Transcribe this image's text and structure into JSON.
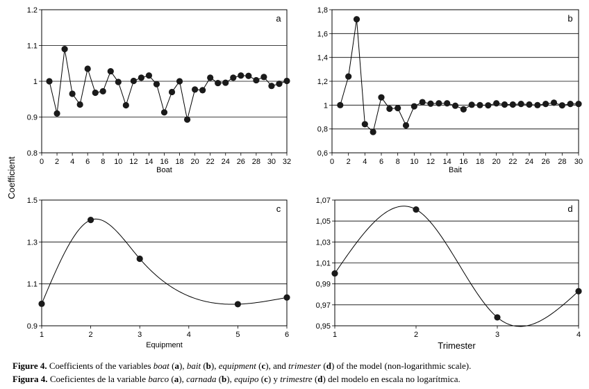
{
  "figure": {
    "shared_ylabel": "Coefficient",
    "colors": {
      "line": "#000000",
      "marker": "#1a1a1a",
      "grid": "#000000"
    }
  },
  "chart_data": [
    {
      "id": "a",
      "type": "line",
      "panel_letter": "a",
      "xlabel": "Boat",
      "ylabel": "",
      "xlim": [
        0,
        32
      ],
      "ylim": [
        0.8,
        1.2
      ],
      "xticks": [
        0,
        2,
        4,
        6,
        8,
        10,
        12,
        14,
        16,
        18,
        20,
        22,
        24,
        26,
        28,
        30,
        32
      ],
      "xtick_labels": [
        "0",
        "2",
        "4",
        "6",
        "8",
        "10",
        "12",
        "14",
        "16",
        "18",
        "20",
        "22",
        "24",
        "26",
        "28",
        "30",
        "32"
      ],
      "yticks": [
        0.8,
        0.9,
        1,
        1.1,
        1.2
      ],
      "ytick_labels": [
        "0.8",
        "0.9",
        "1",
        "1.1",
        "1.2"
      ],
      "grid": "horizontal",
      "smooth": false,
      "x": [
        1,
        2,
        3,
        4,
        5,
        6,
        7,
        8,
        9,
        10,
        11,
        12,
        13,
        14,
        15,
        16,
        17,
        18,
        19,
        20,
        21,
        22,
        23,
        24,
        25,
        26,
        27,
        28,
        29,
        30,
        31,
        32
      ],
      "y": [
        1.0,
        0.91,
        1.09,
        0.965,
        0.935,
        1.035,
        0.968,
        0.972,
        1.028,
        0.998,
        0.933,
        1.001,
        1.01,
        1.016,
        0.992,
        0.913,
        0.97,
        1.0,
        0.893,
        0.977,
        0.975,
        1.01,
        0.995,
        0.996,
        1.01,
        1.016,
        1.015,
        1.003,
        1.012,
        0.987,
        0.993,
        1.001
      ]
    },
    {
      "id": "b",
      "type": "line",
      "panel_letter": "b",
      "xlabel": "Bait",
      "ylabel": "",
      "xlim": [
        0,
        30
      ],
      "ylim": [
        0.6,
        1.8
      ],
      "xticks": [
        0,
        2,
        4,
        6,
        8,
        10,
        12,
        14,
        16,
        18,
        20,
        22,
        24,
        26,
        28,
        30
      ],
      "xtick_labels": [
        "0",
        "2",
        "4",
        "6",
        "8",
        "10",
        "12",
        "14",
        "16",
        "18",
        "20",
        "22",
        "24",
        "26",
        "28",
        "30"
      ],
      "yticks": [
        0.6,
        0.8,
        1.0,
        1.2,
        1.4,
        1.6,
        1.8
      ],
      "ytick_labels": [
        "0,6",
        "0,8",
        "1",
        "1,2",
        "1,4",
        "1,6",
        "1,8"
      ],
      "grid": "horizontal",
      "smooth": false,
      "x": [
        1,
        2,
        3,
        4,
        5,
        6,
        7,
        8,
        9,
        10,
        11,
        12,
        13,
        14,
        15,
        16,
        17,
        18,
        19,
        20,
        21,
        22,
        23,
        24,
        25,
        26,
        27,
        28,
        29,
        30
      ],
      "y": [
        1.0,
        1.24,
        1.72,
        0.84,
        0.775,
        1.065,
        0.97,
        0.975,
        0.83,
        0.99,
        1.025,
        1.012,
        1.015,
        1.015,
        0.995,
        0.965,
        1.003,
        1.0,
        0.998,
        1.015,
        1.005,
        1.005,
        1.01,
        1.005,
        1.0,
        1.01,
        1.02,
        0.998,
        1.01,
        1.01
      ]
    },
    {
      "id": "c",
      "type": "line",
      "panel_letter": "c",
      "xlabel": "Equipment",
      "ylabel": "",
      "xlim": [
        1,
        6
      ],
      "ylim": [
        0.9,
        1.5
      ],
      "xticks": [
        1,
        2,
        3,
        4,
        5,
        6
      ],
      "xtick_labels": [
        "1",
        "2",
        "3",
        "4",
        "5",
        "6"
      ],
      "yticks": [
        0.9,
        1.1,
        1.3,
        1.5
      ],
      "ytick_labels": [
        "0.9",
        "1.1",
        "1.3",
        "1.5"
      ],
      "grid": "horizontal",
      "smooth": true,
      "x": [
        1,
        2,
        3,
        5,
        6
      ],
      "y": [
        1.005,
        1.405,
        1.22,
        1.003,
        1.035
      ]
    },
    {
      "id": "d",
      "type": "line",
      "panel_letter": "d",
      "xlabel": "Trimester",
      "ylabel": "",
      "xlim": [
        1,
        4
      ],
      "ylim": [
        0.95,
        1.07
      ],
      "xticks": [
        1,
        2,
        3,
        4
      ],
      "xtick_labels": [
        "1",
        "2",
        "3",
        "4"
      ],
      "yticks": [
        0.95,
        0.97,
        0.99,
        1.01,
        1.03,
        1.05,
        1.07
      ],
      "ytick_labels": [
        "0,95",
        "0,97",
        "0,99",
        "1,01",
        "1,03",
        "1,05",
        "1,07"
      ],
      "grid": "horizontal",
      "smooth": true,
      "x": [
        1,
        2,
        3,
        4
      ],
      "y": [
        1.0,
        1.061,
        0.958,
        0.983
      ]
    }
  ],
  "caption": {
    "en": {
      "label": "Figure 4.",
      "p1": " Coefficients of the variables ",
      "v1": "boat",
      "l1": "a",
      "p2": ", ",
      "v2": "bait",
      "l2": "b",
      "p3": ", ",
      "v3": "equipment",
      "l3": "c",
      "p4": ", and ",
      "v4": "trimester",
      "l4": "d",
      "p5": " of the model (non-logarithmic scale)."
    },
    "es": {
      "label": "Figura 4.",
      "p1": " Coeficientes de la variable ",
      "v1": "barco",
      "l1": "a",
      "p2": ", ",
      "v2": "carnada",
      "l2": "b",
      "p3": ", ",
      "v3": "equipo",
      "l3": "c",
      "p4": " y ",
      "v4": "trimestre",
      "l4": "d",
      "p5": " del modelo en escala no logarítmica."
    }
  }
}
